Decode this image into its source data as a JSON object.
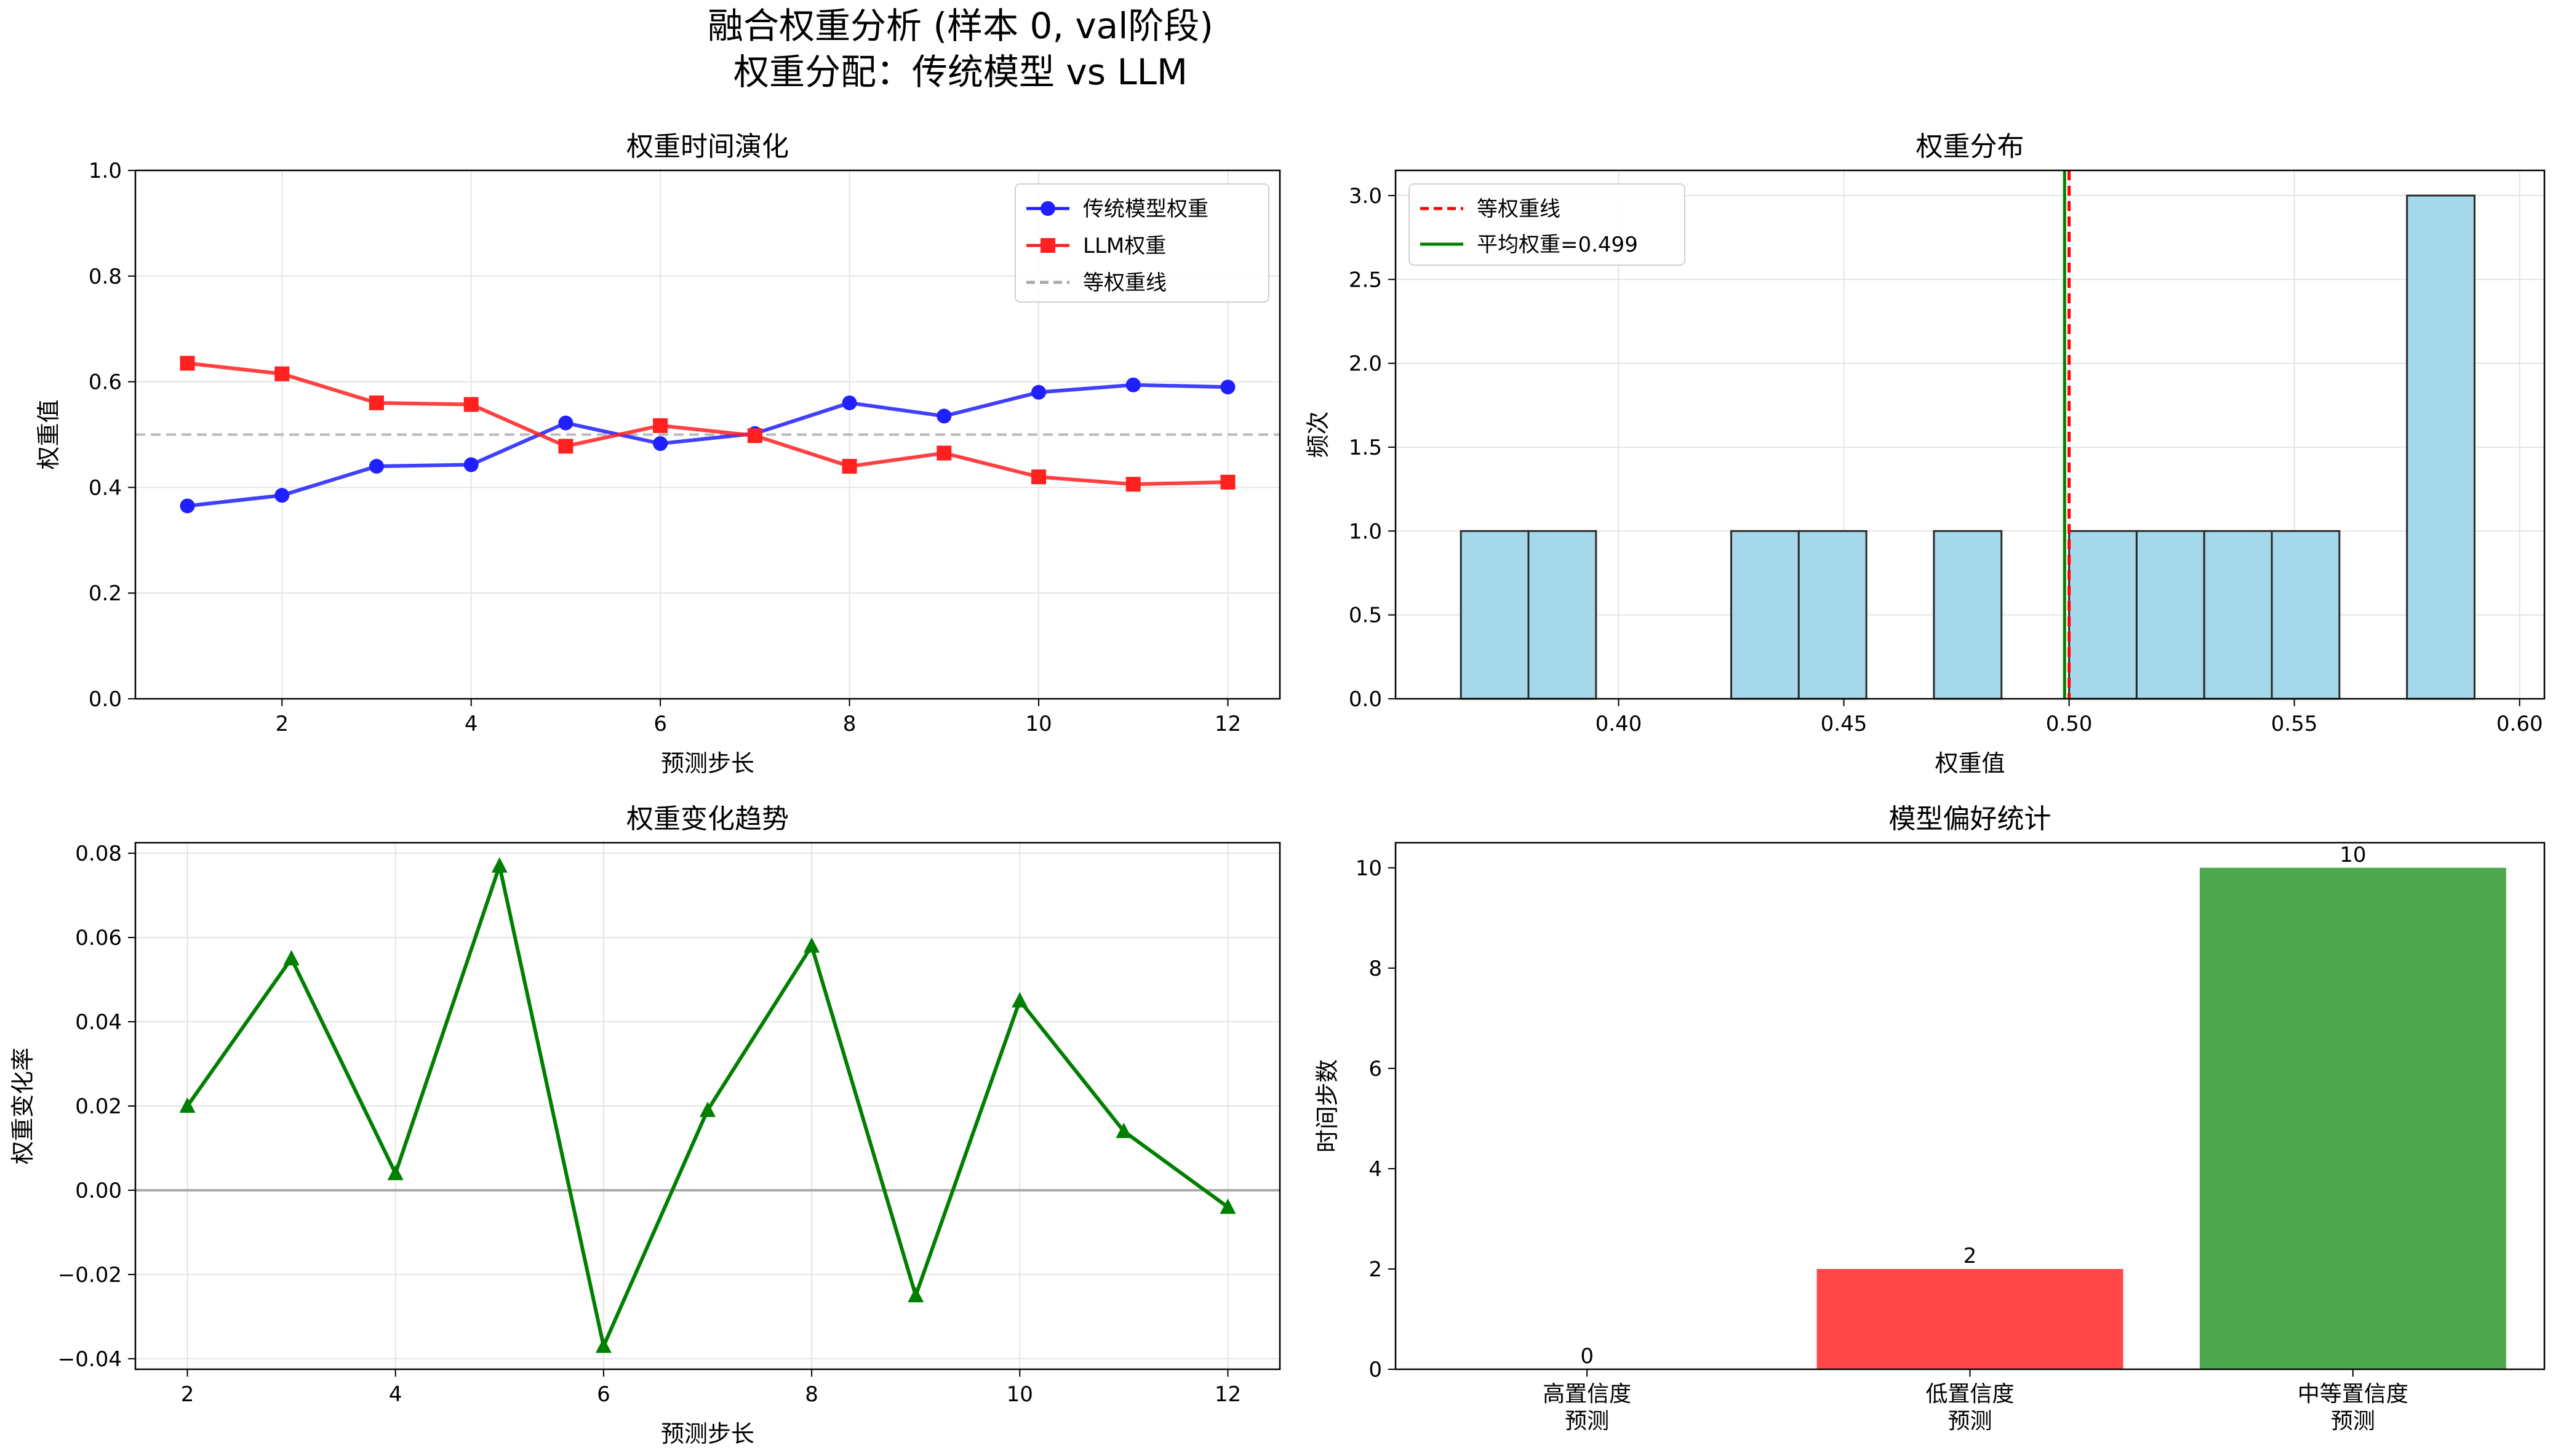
{
  "figure": {
    "title_line1": "融合权重分析 (样本 0, val阶段)",
    "title_line2": "权重分配：传统模型 vs LLM"
  },
  "chart_data": [
    {
      "id": "evolution",
      "type": "line",
      "title": "权重时间演化",
      "xlabel": "预测步长",
      "ylabel": "权重值",
      "xlim": [
        0.45,
        12.55
      ],
      "ylim": [
        0,
        1
      ],
      "xticks": [
        2,
        4,
        6,
        8,
        10,
        12
      ],
      "yticks": [
        0.0,
        0.2,
        0.4,
        0.6,
        0.8,
        1.0
      ],
      "grid": true,
      "legend_position": "upper right",
      "x": [
        1,
        2,
        3,
        4,
        5,
        6,
        7,
        8,
        9,
        10,
        11,
        12
      ],
      "series": [
        {
          "name": "传统模型权重",
          "color": "#1f1fff",
          "marker": "circle",
          "values": [
            0.365,
            0.385,
            0.44,
            0.443,
            0.522,
            0.483,
            0.502,
            0.56,
            0.535,
            0.58,
            0.594,
            0.59
          ]
        },
        {
          "name": "LLM权重",
          "color": "#ff2020",
          "marker": "square",
          "values": [
            0.635,
            0.615,
            0.56,
            0.557,
            0.478,
            0.517,
            0.498,
            0.44,
            0.465,
            0.42,
            0.406,
            0.41
          ]
        }
      ],
      "hline": {
        "name": "等权重线",
        "value": 0.5,
        "color": "#aaaaaa",
        "style": "dashed"
      }
    },
    {
      "id": "histogram",
      "type": "bar",
      "title": "权重分布",
      "xlabel": "权重值",
      "ylabel": "频次",
      "xlim": [
        0.3505,
        0.6055
      ],
      "ylim": [
        0,
        3.15
      ],
      "xticks": [
        0.4,
        0.45,
        0.5,
        0.55,
        0.6
      ],
      "xtick_labels": [
        "0.40",
        "0.45",
        "0.50",
        "0.55",
        "0.60"
      ],
      "yticks": [
        0.0,
        0.5,
        1.0,
        1.5,
        2.0,
        2.5,
        3.0
      ],
      "ytick_labels": [
        "0.0",
        "0.5",
        "1.0",
        "1.5",
        "2.0",
        "2.5",
        "3.0"
      ],
      "grid": true,
      "legend_position": "upper left",
      "bar_color": "#a6d8ec",
      "bins": [
        [
          0.365,
          0.38,
          1
        ],
        [
          0.38,
          0.395,
          1
        ],
        [
          0.395,
          0.41,
          0
        ],
        [
          0.41,
          0.425,
          0
        ],
        [
          0.425,
          0.44,
          1
        ],
        [
          0.44,
          0.455,
          1
        ],
        [
          0.455,
          0.47,
          0
        ],
        [
          0.47,
          0.485,
          1
        ],
        [
          0.485,
          0.5,
          0
        ],
        [
          0.5,
          0.515,
          1
        ],
        [
          0.515,
          0.53,
          1
        ],
        [
          0.53,
          0.545,
          1
        ],
        [
          0.545,
          0.56,
          1
        ],
        [
          0.56,
          0.575,
          0
        ],
        [
          0.575,
          0.59,
          3
        ]
      ],
      "vlines": [
        {
          "name": "等权重线",
          "value": 0.5,
          "color": "#ff0000",
          "style": "dashed"
        },
        {
          "name": "平均权重=0.499",
          "value": 0.499,
          "color": "#007f00",
          "style": "solid"
        }
      ]
    },
    {
      "id": "trend",
      "type": "line",
      "title": "权重变化趋势",
      "xlabel": "预测步长",
      "ylabel": "权重变化率",
      "xlim": [
        1.5,
        12.5
      ],
      "ylim": [
        -0.0425,
        0.0825
      ],
      "xticks": [
        2,
        4,
        6,
        8,
        10,
        12
      ],
      "yticks": [
        -0.04,
        -0.02,
        0.0,
        0.02,
        0.04,
        0.06,
        0.08
      ],
      "ytick_labels": [
        "−0.04",
        "−0.02",
        "0.00",
        "0.02",
        "0.04",
        "0.06",
        "0.08"
      ],
      "grid": true,
      "x": [
        2,
        3,
        4,
        5,
        6,
        7,
        8,
        9,
        10,
        11,
        12
      ],
      "series": [
        {
          "color": "#007f00",
          "marker": "triangle",
          "values": [
            0.02,
            0.055,
            0.004,
            0.077,
            -0.037,
            0.019,
            0.058,
            -0.025,
            0.045,
            0.014,
            -0.004
          ]
        }
      ],
      "hline": {
        "value": 0,
        "color": "#999999",
        "style": "solid"
      }
    },
    {
      "id": "preference",
      "type": "bar",
      "title": "模型偏好统计",
      "xlabel": "",
      "ylabel": "时间步数",
      "ylim": [
        0,
        10.5
      ],
      "yticks": [
        0,
        2,
        4,
        6,
        8,
        10
      ],
      "categories": [
        [
          "高置信度",
          "预测"
        ],
        [
          "低置信度",
          "预测"
        ],
        [
          "中等置信度",
          "预测"
        ]
      ],
      "values": [
        0,
        2,
        10
      ],
      "colors": [
        "#3a6fd8",
        "#ff4747",
        "#4da84d"
      ],
      "grid": false
    }
  ]
}
